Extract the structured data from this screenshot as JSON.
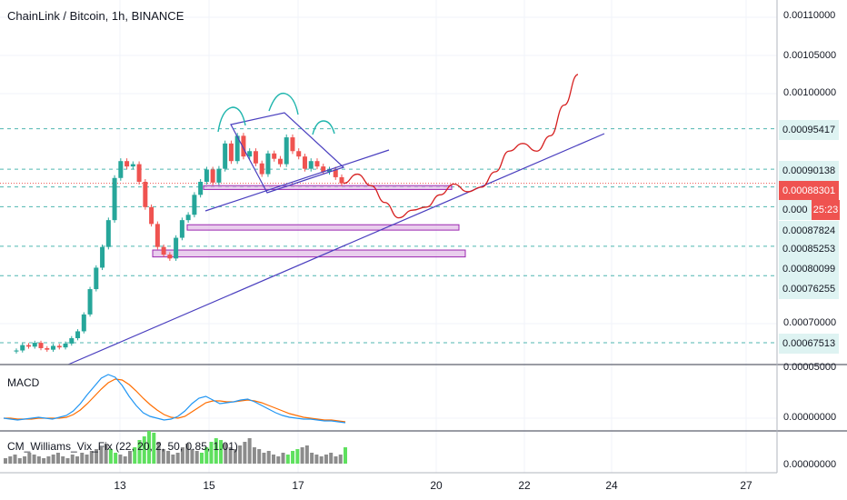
{
  "title": "ChainLink / Bitcoin, 1h, BINANCE",
  "colors": {
    "up": "#26a69a",
    "down": "#ef5350",
    "candle": "#2d8a2d",
    "macd_line": "#2196f3",
    "signal_line": "#ff6d00",
    "trendline": "#4a3fbf",
    "projection": "#d61f1f",
    "zone_fill": "#e1bee7",
    "zone_border": "#9c27b0",
    "pattern": "#1fb5ad",
    "wvf_gray": "#8c8c8c",
    "wvf_lime": "#5ee05e",
    "price_line": "#ef5350"
  },
  "price_axis": {
    "ticks": [
      "0.00110000",
      "0.00105000",
      "0.00100000",
      "0.00070000"
    ],
    "tags": [
      {
        "label": "0.00095417"
      },
      {
        "label": "0.00090138"
      },
      {
        "label": "0.00088301",
        "current": true
      },
      {
        "label": "0.000"
      },
      {
        "label": "0.00087824"
      },
      {
        "label": "0.00085253"
      },
      {
        "label": "0.00080099"
      },
      {
        "label": "0.00076255"
      },
      {
        "label": "0.00067513"
      }
    ],
    "timer": "25:23"
  },
  "macd": {
    "label": "MACD",
    "ticks": [
      "0.00005000",
      "0.00000000"
    ]
  },
  "wvf": {
    "label": "CM_Williams_Vix_Fix (22, 20, 2, 50, 0.85, 1.01)",
    "ticks": [
      "0.00000000"
    ]
  },
  "x_axis": {
    "ticks": [
      "13",
      "15",
      "17",
      "20",
      "22",
      "24",
      "27"
    ]
  },
  "chart_data": {
    "type": "line",
    "title": "ChainLink / Bitcoin, 1h, BINANCE",
    "xlabel": "",
    "ylabel": "",
    "x_ticks": [
      "13",
      "15",
      "17",
      "20",
      "22",
      "24",
      "27"
    ],
    "ylim": [
      0.00065,
      0.00113
    ],
    "horizontal_levels": [
      0.00095417,
      0.00090138,
      0.00088301,
      0.00087824,
      0.00085253,
      0.00080099,
      0.00076255,
      0.00067513
    ],
    "current_price": 0.00088301,
    "series": [
      {
        "values": [
          0.000665,
          0.000672,
          0.00067,
          0.000675,
          0.000668,
          0.000666,
          0.000671,
          0.000669,
          0.000674,
          0.000681,
          0.00069,
          0.000712,
          0.000745,
          0.000773,
          0.0008,
          0.000835,
          0.00089,
          0.000912,
          0.000905,
          0.000908,
          0.000885,
          0.000852,
          0.00083,
          0.0008,
          0.00079,
          0.000785,
          0.000812,
          0.000835,
          0.000842,
          0.000868,
          0.000885,
          0.000901,
          0.000884,
          0.000902,
          0.000935,
          0.000912,
          0.000945,
          0.000918,
          0.000925,
          0.000909,
          0.000895,
          0.000922,
          0.000915,
          0.000908,
          0.000943,
          0.000925,
          0.000918,
          0.000902,
          0.000912,
          0.000905,
          0.000898,
          0.000901,
          0.000891,
          0.000883
        ]
      }
    ],
    "projection": [
      0.000883,
      0.000895,
      0.00088,
      0.000858,
      0.000838,
      0.000848,
      0.000852,
      0.000868,
      0.000882,
      0.000872,
      0.000878,
      0.000898,
      0.000925,
      0.000935,
      0.000925,
      0.000945,
      0.000985,
      0.001025
    ]
  }
}
